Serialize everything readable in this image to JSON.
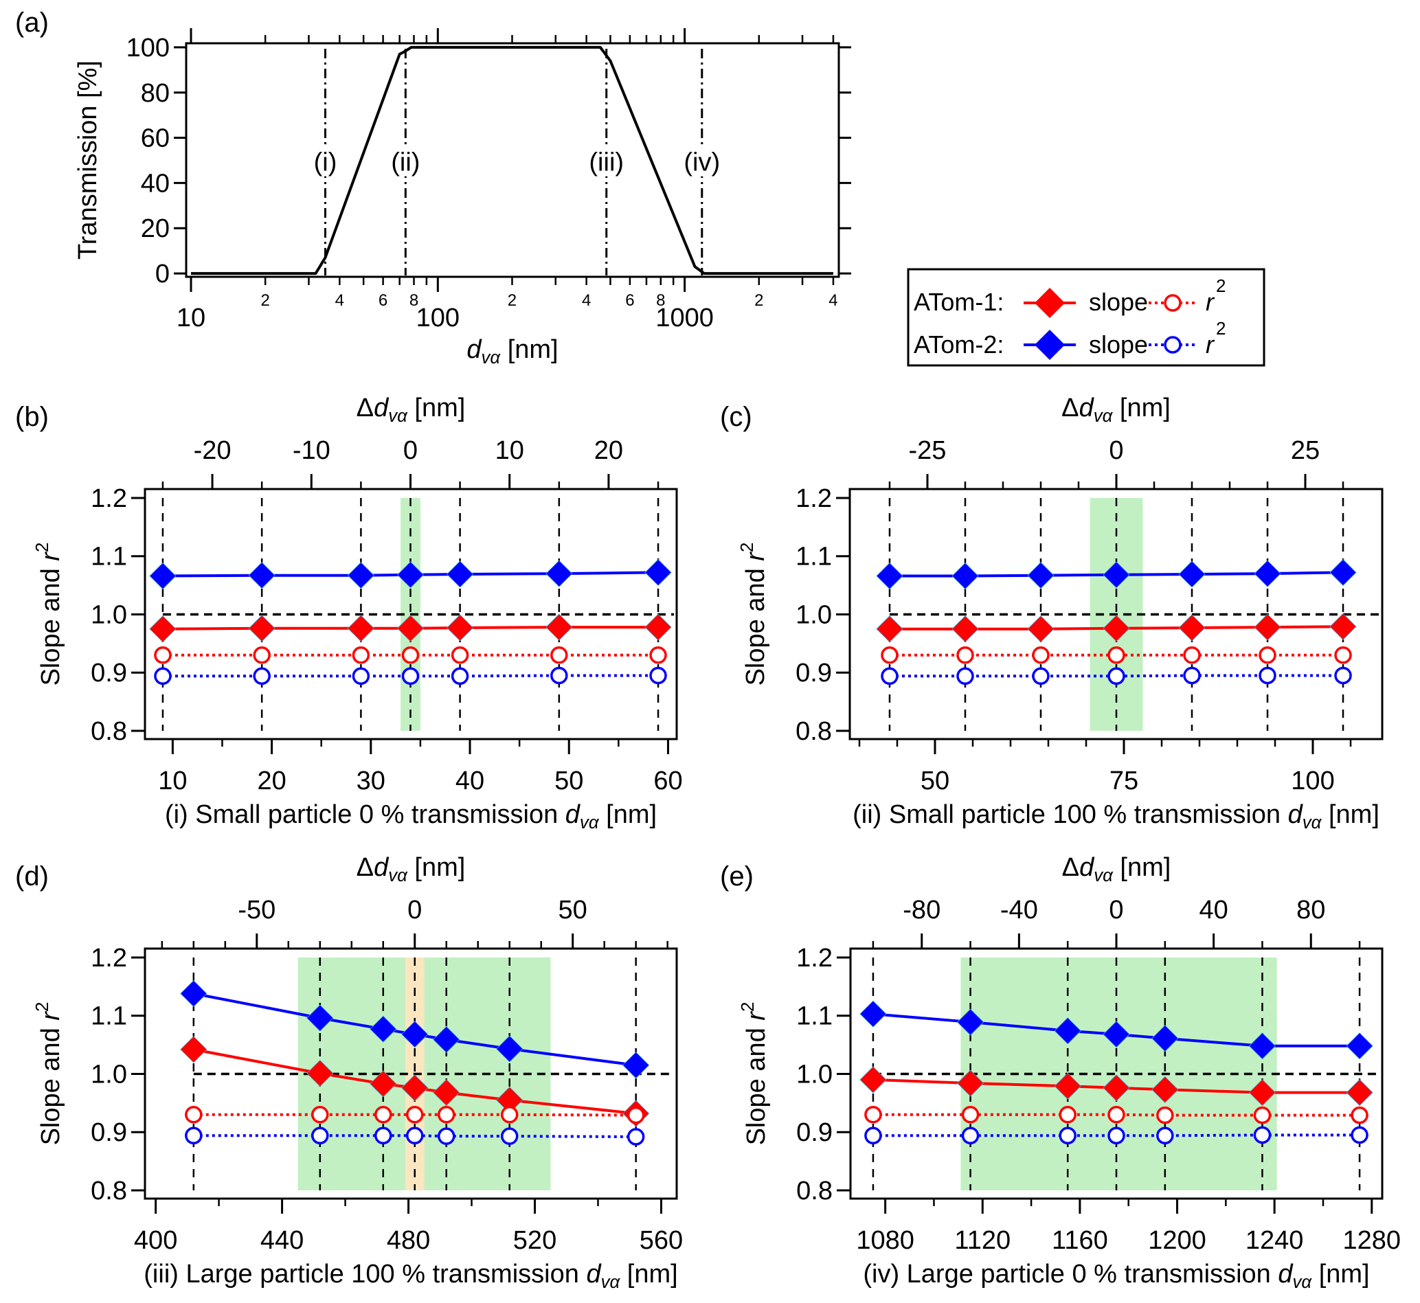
{
  "legend": {
    "rows": [
      {
        "label": "ATom-1:",
        "slope_label": "slope",
        "r2_label": "r",
        "r2_sup": "2",
        "color": "#ff0000"
      },
      {
        "label": "ATom-2:",
        "slope_label": "slope",
        "r2_label": "r",
        "r2_sup": "2",
        "color": "#0000ff"
      }
    ]
  },
  "chart_data": [
    {
      "id": "a",
      "panel_label": "(a)",
      "type": "line",
      "xscale": "log",
      "xlabel_main": "d",
      "xlabel_sub": "vα",
      "xlabel_unit": " [nm]",
      "ylabel": "Transmission [%]",
      "xlim": [
        9.56,
        4212
      ],
      "ylim": [
        -1.5,
        101.8
      ],
      "xticks_major": [
        10,
        100,
        1000
      ],
      "xticks_major_labels": [
        "10",
        "100",
        "1000"
      ],
      "xticks_minor": [
        20,
        30,
        40,
        50,
        60,
        70,
        80,
        90,
        200,
        300,
        400,
        500,
        600,
        700,
        800,
        900,
        2000,
        3000,
        4000
      ],
      "xticks_minor_labels": {
        "20": "2",
        "40": "4",
        "60": "6",
        "80": "8",
        "200": "2",
        "400": "4",
        "600": "6",
        "800": "8",
        "2000": "2",
        "4000": "4"
      },
      "yticks": [
        0,
        20,
        40,
        60,
        80,
        100
      ],
      "yticks_labels": [
        "0",
        "20",
        "40",
        "60",
        "80",
        "100"
      ],
      "series": [
        {
          "name": "Transmission",
          "color": "#000000",
          "x": [
            10,
            32,
            35,
            70,
            73,
            78,
            455,
            470,
            500,
            1100,
            1200,
            4000
          ],
          "y": [
            0,
            0,
            7,
            97,
            98,
            100,
            100,
            98,
            94,
            3,
            0,
            0
          ]
        }
      ],
      "vlines": [
        {
          "x": 35,
          "label": "(i)"
        },
        {
          "x": 74,
          "label": "(ii)"
        },
        {
          "x": 482,
          "label": "(iii)"
        },
        {
          "x": 1175,
          "label": "(iv)"
        }
      ],
      "vline_label_y": 46
    },
    {
      "id": "b",
      "panel_label": "(b)",
      "type": "line",
      "xlabel": "(i) Small particle 0 % transmission ",
      "xlabel_main": "d",
      "xlabel_sub": "vα",
      "xlabel_unit": " [nm]",
      "ylabel": "Slope and ",
      "ylabel_r": "r",
      "ylabel_sup": "2",
      "top_xlabel": "Δ",
      "xlim": [
        7.2,
        60.87
      ],
      "ylim": [
        0.7858,
        1.2153
      ],
      "xticks": [
        10,
        20,
        30,
        40,
        50,
        60
      ],
      "xticks_labels": [
        "10",
        "20",
        "30",
        "40",
        "50",
        "60"
      ],
      "xticks_minor": [
        15,
        25,
        35,
        45,
        55
      ],
      "top_center": 34,
      "top_ticks": [
        -20,
        -10,
        0,
        10,
        20
      ],
      "top_ticks_labels": [
        "-20",
        "-10",
        "0",
        "10",
        "20"
      ],
      "top_ticks_minor": [
        -25,
        -15,
        -5,
        5,
        15,
        25
      ],
      "yticks": [
        0.8,
        0.9,
        1.0,
        1.1,
        1.2
      ],
      "yticks_labels": [
        "0.8",
        "0.9",
        "1.0",
        "1.1",
        "1.2"
      ],
      "x": [
        9,
        19,
        29,
        34,
        39,
        49,
        59
      ],
      "bands": [
        {
          "x0": 33,
          "x1": 35,
          "color": "#c3f0c3"
        }
      ],
      "series": [
        {
          "name": "ATom-2 slope",
          "color": "#0000ff",
          "marker": "diamond",
          "style": "solid",
          "values": [
            1.066,
            1.067,
            1.067,
            1.068,
            1.069,
            1.07,
            1.072
          ]
        },
        {
          "name": "ATom-1 slope",
          "color": "#ff0000",
          "marker": "diamond",
          "style": "solid",
          "values": [
            0.975,
            0.976,
            0.976,
            0.976,
            0.977,
            0.978,
            0.978
          ]
        },
        {
          "name": "ATom-1 r2",
          "color": "#ff0000",
          "marker": "circle",
          "style": "dotted",
          "values": [
            0.93,
            0.93,
            0.93,
            0.93,
            0.93,
            0.93,
            0.93
          ]
        },
        {
          "name": "ATom-2 r2",
          "color": "#0000ff",
          "marker": "circle",
          "style": "dotted",
          "values": [
            0.894,
            0.894,
            0.894,
            0.894,
            0.894,
            0.895,
            0.895
          ]
        }
      ],
      "reference_y": 1.0
    },
    {
      "id": "c",
      "panel_label": "(c)",
      "type": "line",
      "xlabel": "(ii) Small particle 100 % transmission ",
      "xlabel_main": "d",
      "xlabel_sub": "vα",
      "xlabel_unit": " [nm]",
      "ylabel": "Slope and ",
      "ylabel_r": "r",
      "ylabel_sup": "2",
      "top_xlabel": "Δ",
      "xlim": [
        38.73,
        109.18
      ],
      "ylim": [
        0.7858,
        1.2153
      ],
      "xticks": [
        50,
        75,
        100
      ],
      "xticks_labels": [
        "50",
        "75",
        "100"
      ],
      "xticks_minor": [
        40,
        45,
        55,
        60,
        65,
        70,
        80,
        85,
        90,
        95,
        105
      ],
      "top_center": 74,
      "top_ticks": [
        -25,
        0,
        25
      ],
      "top_ticks_labels": [
        "-25",
        "0",
        "25"
      ],
      "top_ticks_minor": [
        -30,
        -20,
        -15,
        -10,
        -5,
        5,
        10,
        15,
        20,
        30
      ],
      "yticks": [
        0.8,
        0.9,
        1.0,
        1.1,
        1.2
      ],
      "yticks_labels": [
        "0.8",
        "0.9",
        "1.0",
        "1.1",
        "1.2"
      ],
      "x": [
        44,
        54,
        64,
        74,
        84,
        94,
        104
      ],
      "bands": [
        {
          "x0": 70.5,
          "x1": 77.5,
          "color": "#c3f0c3"
        }
      ],
      "series": [
        {
          "name": "ATom-2 slope",
          "color": "#0000ff",
          "marker": "diamond",
          "style": "solid",
          "values": [
            1.066,
            1.066,
            1.067,
            1.068,
            1.069,
            1.07,
            1.072
          ]
        },
        {
          "name": "ATom-1 slope",
          "color": "#ff0000",
          "marker": "diamond",
          "style": "solid",
          "values": [
            0.975,
            0.975,
            0.975,
            0.976,
            0.977,
            0.978,
            0.979
          ]
        },
        {
          "name": "ATom-1 r2",
          "color": "#ff0000",
          "marker": "circle",
          "style": "dotted",
          "values": [
            0.93,
            0.93,
            0.93,
            0.93,
            0.93,
            0.93,
            0.93
          ]
        },
        {
          "name": "ATom-2 r2",
          "color": "#0000ff",
          "marker": "circle",
          "style": "dotted",
          "values": [
            0.894,
            0.894,
            0.894,
            0.894,
            0.895,
            0.895,
            0.895
          ]
        }
      ],
      "reference_y": 1.0
    },
    {
      "id": "d",
      "panel_label": "(d)",
      "type": "line",
      "xlabel": "(iii) Large particle 100 % transmission ",
      "xlabel_main": "d",
      "xlabel_sub": "vα",
      "xlabel_unit": " [nm]",
      "ylabel": "Slope and ",
      "ylabel_r": "r",
      "ylabel_sup": "2",
      "top_xlabel": "Δ",
      "xlim": [
        396.6,
        564.9
      ],
      "ylim": [
        0.7858,
        1.2153
      ],
      "xticks": [
        400,
        440,
        480,
        520,
        560
      ],
      "xticks_labels": [
        "400",
        "440",
        "480",
        "520",
        "560"
      ],
      "xticks_minor": [
        420,
        460,
        500,
        540
      ],
      "top_center": 482,
      "top_ticks": [
        -50,
        0,
        50
      ],
      "top_ticks_labels": [
        "-50",
        "0",
        "50"
      ],
      "top_ticks_minor": [
        -80,
        -70,
        -60,
        -40,
        -30,
        -20,
        -10,
        10,
        20,
        30,
        40,
        60,
        70,
        80
      ],
      "yticks": [
        0.8,
        0.9,
        1.0,
        1.1,
        1.2
      ],
      "yticks_labels": [
        "0.8",
        "0.9",
        "1.0",
        "1.1",
        "1.2"
      ],
      "x": [
        412,
        452,
        472,
        482,
        492,
        512,
        552
      ],
      "bands": [
        {
          "x0": 445,
          "x1": 525,
          "color": "#c3f0c3"
        },
        {
          "x0": 479,
          "x1": 485,
          "color": "#fbe6c0"
        }
      ],
      "series": [
        {
          "name": "ATom-2 slope",
          "color": "#0000ff",
          "marker": "diamond",
          "style": "solid",
          "values": [
            1.138,
            1.096,
            1.077,
            1.068,
            1.059,
            1.043,
            1.015
          ]
        },
        {
          "name": "ATom-1 slope",
          "color": "#ff0000",
          "marker": "diamond",
          "style": "solid",
          "values": [
            1.042,
            1.001,
            0.983,
            0.976,
            0.968,
            0.955,
            0.932
          ]
        },
        {
          "name": "ATom-1 r2",
          "color": "#ff0000",
          "marker": "circle",
          "style": "dotted",
          "values": [
            0.93,
            0.93,
            0.93,
            0.93,
            0.93,
            0.93,
            0.929
          ]
        },
        {
          "name": "ATom-2 r2",
          "color": "#0000ff",
          "marker": "circle",
          "style": "dotted",
          "values": [
            0.894,
            0.894,
            0.894,
            0.894,
            0.893,
            0.893,
            0.892
          ]
        }
      ],
      "reference_y": 1.0
    },
    {
      "id": "e",
      "panel_label": "(e)",
      "type": "line",
      "xlabel": "(iv) Large particle 0 % transmission ",
      "xlabel_main": "d",
      "xlabel_sub": "vα",
      "xlabel_unit": " [nm]",
      "ylabel": "Slope and ",
      "ylabel_r": "r",
      "ylabel_sup": "2",
      "top_xlabel": "Δ",
      "xlim": [
        1065.7,
        1284.3
      ],
      "ylim": [
        0.7858,
        1.2153
      ],
      "xticks": [
        1080,
        1120,
        1160,
        1200,
        1240,
        1280
      ],
      "xticks_labels": [
        "1080",
        "1120",
        "1160",
        "1200",
        "1240",
        "1280"
      ],
      "xticks_minor": [
        1100,
        1140,
        1180,
        1220,
        1260
      ],
      "top_center": 1175,
      "top_ticks": [
        -80,
        -40,
        0,
        40,
        80
      ],
      "top_ticks_labels": [
        "-80",
        "-40",
        "0",
        "40",
        "80"
      ],
      "top_ticks_minor": [
        -100,
        -60,
        -20,
        20,
        60,
        100
      ],
      "yticks": [
        0.8,
        0.9,
        1.0,
        1.1,
        1.2
      ],
      "yticks_labels": [
        "0.8",
        "0.9",
        "1.0",
        "1.1",
        "1.2"
      ],
      "x": [
        1075,
        1115,
        1155,
        1175,
        1195,
        1235,
        1275
      ],
      "bands": [
        {
          "x0": 1111,
          "x1": 1241,
          "color": "#c3f0c3"
        }
      ],
      "series": [
        {
          "name": "ATom-2 slope",
          "color": "#0000ff",
          "marker": "diamond",
          "style": "solid",
          "values": [
            1.103,
            1.089,
            1.074,
            1.068,
            1.061,
            1.048,
            1.048
          ]
        },
        {
          "name": "ATom-1 slope",
          "color": "#ff0000",
          "marker": "diamond",
          "style": "solid",
          "values": [
            0.99,
            0.984,
            0.979,
            0.976,
            0.973,
            0.968,
            0.968
          ]
        },
        {
          "name": "ATom-1 r2",
          "color": "#ff0000",
          "marker": "circle",
          "style": "dotted",
          "values": [
            0.93,
            0.93,
            0.93,
            0.93,
            0.929,
            0.929,
            0.929
          ]
        },
        {
          "name": "ATom-2 r2",
          "color": "#0000ff",
          "marker": "circle",
          "style": "dotted",
          "values": [
            0.894,
            0.894,
            0.894,
            0.894,
            0.894,
            0.895,
            0.895
          ]
        }
      ],
      "reference_y": 1.0
    }
  ]
}
